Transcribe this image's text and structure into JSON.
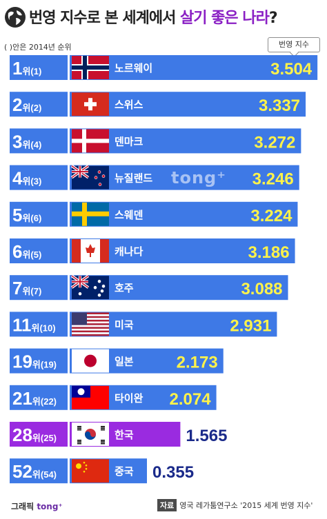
{
  "title": {
    "part1": "번영 지수로 본 세계에서 ",
    "highlight": "살기 좋은 나라",
    "part2": "?"
  },
  "note": "( )안은 2014년 순위",
  "index_label": "번영 지수",
  "watermark": "tong⁺",
  "footer": {
    "graphic_label": "그래픽 ",
    "graphic_brand": "tong⁺",
    "source_badge": "자료",
    "source_text": "영국 레가툼연구소 '2015 세계 번영 지수'"
  },
  "colors": {
    "bar": "#3e79e6",
    "highlight_bar": "#9a2be0",
    "rank_box": "#3e79e6",
    "highlight_rank": "#9a2be0",
    "value": "#fff34a"
  },
  "chart_data": {
    "type": "bar",
    "orientation": "horizontal",
    "categories": [
      "노르웨이",
      "스위스",
      "덴마크",
      "뉴질랜드",
      "스웨덴",
      "캐나다",
      "호주",
      "미국",
      "일본",
      "타이완",
      "한국",
      "중국"
    ],
    "ranks": [
      "1",
      "2",
      "3",
      "4",
      "5",
      "6",
      "7",
      "11",
      "19",
      "21",
      "28",
      "52"
    ],
    "prev_ranks": [
      "(1)",
      "(2)",
      "(4)",
      "(3)",
      "(6)",
      "(5)",
      "(7)",
      "(10)",
      "(19)",
      "(22)",
      "(25)",
      "(54)"
    ],
    "rank_suffix": "위",
    "values": [
      3.504,
      3.337,
      3.272,
      3.246,
      3.224,
      3.186,
      3.088,
      2.931,
      2.173,
      2.074,
      1.565,
      0.355
    ],
    "labels": [
      "3.504",
      "3.337",
      "3.272",
      "3.246",
      "3.224",
      "3.186",
      "3.088",
      "2.931",
      "2.173",
      "2.074",
      "1.565",
      "0.355"
    ],
    "flags": [
      "norway",
      "switzerland",
      "denmark",
      "new-zealand",
      "sweden",
      "canada",
      "australia",
      "usa",
      "japan",
      "taiwan",
      "south-korea",
      "china"
    ],
    "highlight_index": 10
  }
}
